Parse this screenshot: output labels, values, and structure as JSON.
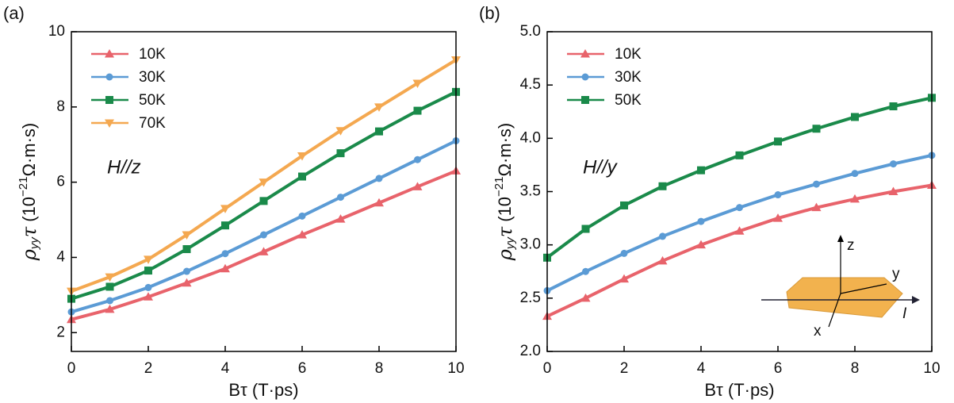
{
  "chart_data": [
    {
      "type": "line",
      "panel_label": "(a)",
      "annotation": "H//z",
      "x_label": "Bτ (T·ps)",
      "y_label": {
        "symbol": "ρ",
        "sub": "yy",
        "tau": "τ",
        "open": " (10",
        "sup": "−21",
        "rest": "Ω·m·s)"
      },
      "x": [
        0,
        1,
        2,
        3,
        4,
        5,
        6,
        7,
        8,
        9,
        10
      ],
      "xlim": [
        0,
        10
      ],
      "xticks": [
        0,
        2,
        4,
        6,
        8,
        10
      ],
      "ylim": [
        1.5,
        10
      ],
      "yticks": [
        2,
        4,
        6,
        8,
        10
      ],
      "series": [
        {
          "name": "10K",
          "color": "#e8636b",
          "marker": "triangle",
          "values": [
            2.35,
            2.62,
            2.95,
            3.32,
            3.7,
            4.15,
            4.6,
            5.02,
            5.45,
            5.88,
            6.3
          ]
        },
        {
          "name": "30K",
          "color": "#5b9bd5",
          "marker": "circle",
          "values": [
            2.55,
            2.85,
            3.2,
            3.63,
            4.1,
            4.6,
            5.1,
            5.6,
            6.1,
            6.6,
            7.1
          ]
        },
        {
          "name": "50K",
          "color": "#1a8a4a",
          "marker": "square",
          "values": [
            2.9,
            3.22,
            3.65,
            4.22,
            4.85,
            5.5,
            6.15,
            6.77,
            7.35,
            7.9,
            8.4
          ]
        },
        {
          "name": "70K",
          "color": "#f4a850",
          "marker": "triangle-down",
          "values": [
            3.1,
            3.48,
            3.95,
            4.6,
            5.3,
            6.0,
            6.7,
            7.37,
            8.0,
            8.63,
            9.25
          ]
        }
      ]
    },
    {
      "type": "line",
      "panel_label": "(b)",
      "annotation": "H//y",
      "x_label": "Bτ (T·ps)",
      "y_label": {
        "symbol": "ρ",
        "sub": "yy",
        "tau": "τ",
        "open": " (10",
        "sup": "−21",
        "rest": "Ω·m·s)"
      },
      "inset_labels": [
        "z",
        "y",
        "x",
        "I"
      ],
      "x": [
        0,
        1,
        2,
        3,
        4,
        5,
        6,
        7,
        8,
        9,
        10
      ],
      "xlim": [
        0,
        10
      ],
      "xticks": [
        0,
        2,
        4,
        6,
        8,
        10
      ],
      "ylim": [
        2.0,
        5.0
      ],
      "yticks": [
        {
          "value": 2.0,
          "label": "2.0"
        },
        2.5,
        {
          "value": 3.0,
          "label": "3.0"
        },
        3.5,
        {
          "value": 4.0,
          "label": "4.0"
        },
        4.5,
        {
          "value": 5.0,
          "label": "5.0"
        }
      ],
      "series": [
        {
          "name": "10K",
          "color": "#e8636b",
          "marker": "triangle",
          "values": [
            2.33,
            2.5,
            2.68,
            2.85,
            3.0,
            3.13,
            3.25,
            3.35,
            3.43,
            3.5,
            3.56
          ]
        },
        {
          "name": "30K",
          "color": "#5b9bd5",
          "marker": "circle",
          "values": [
            2.57,
            2.75,
            2.92,
            3.08,
            3.22,
            3.35,
            3.47,
            3.57,
            3.67,
            3.76,
            3.84
          ]
        },
        {
          "name": "50K",
          "color": "#1a8a4a",
          "marker": "square",
          "values": [
            2.88,
            3.15,
            3.37,
            3.55,
            3.7,
            3.84,
            3.97,
            4.09,
            4.2,
            4.3,
            4.38
          ]
        }
      ]
    }
  ]
}
